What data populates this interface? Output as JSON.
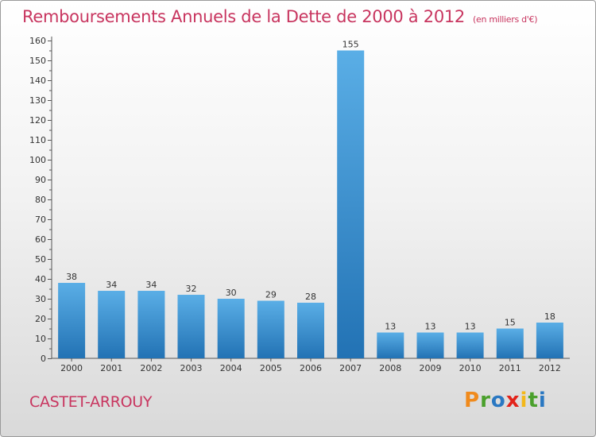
{
  "header": {
    "title": "Remboursements Annuels de la Dette de 2000 à 2012",
    "unit": "(en milliers d'€)"
  },
  "commune": "CASTET-ARROUY",
  "logo": {
    "letters": [
      "P",
      "r",
      "o",
      "x",
      "i",
      "t",
      "i"
    ],
    "colors": [
      "#f08a1c",
      "#4aa02c",
      "#2a78c2",
      "#e2231a",
      "#f3b81a",
      "#4aa02c",
      "#2a78c2"
    ]
  },
  "colors": {
    "title": "#c8355f",
    "bar_top": "#5aaee6",
    "bar_bottom": "#2272b4"
  },
  "chart_data": {
    "type": "bar",
    "title": "Remboursements Annuels de la Dette de 2000 à 2012",
    "xlabel": "",
    "ylabel": "",
    "categories": [
      "2000",
      "2001",
      "2002",
      "2003",
      "2004",
      "2005",
      "2006",
      "2007",
      "2008",
      "2009",
      "2010",
      "2011",
      "2012"
    ],
    "values": [
      38,
      34,
      34,
      32,
      30,
      29,
      28,
      155,
      13,
      13,
      13,
      15,
      18
    ],
    "value_labels": [
      "38",
      "34",
      "34",
      "32",
      "30",
      "29",
      "28",
      "155",
      "13",
      "13",
      "13",
      "15",
      "18"
    ],
    "ylim": [
      0,
      160
    ],
    "yticks": [
      0,
      10,
      20,
      30,
      40,
      50,
      60,
      70,
      80,
      90,
      100,
      110,
      120,
      130,
      140,
      150,
      160
    ],
    "grid": false,
    "legend": "none"
  }
}
